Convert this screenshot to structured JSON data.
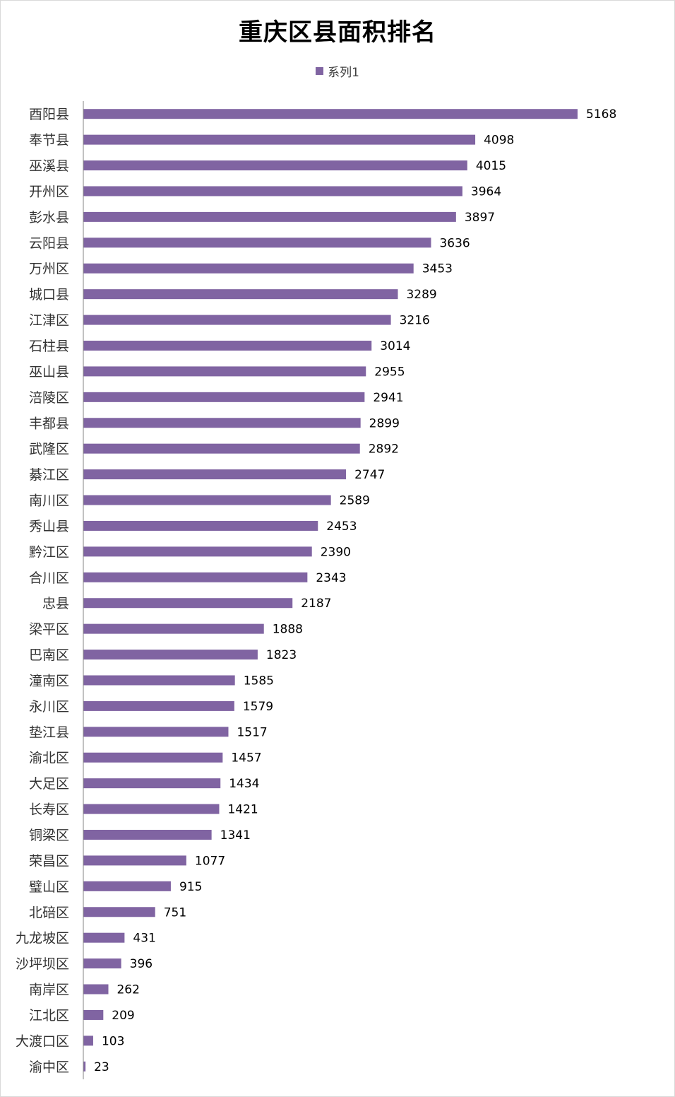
{
  "chart_data": {
    "type": "bar",
    "orientation": "horizontal",
    "title": "重庆区县面积排名",
    "legend_position": "top",
    "grid": false,
    "color": "#8064A2",
    "xlim": [
      0,
      5500
    ],
    "series": [
      {
        "name": "系列1",
        "values": [
          5168,
          4098,
          4015,
          3964,
          3897,
          3636,
          3453,
          3289,
          3216,
          3014,
          2955,
          2941,
          2899,
          2892,
          2747,
          2589,
          2453,
          2390,
          2343,
          2187,
          1888,
          1823,
          1585,
          1579,
          1517,
          1457,
          1434,
          1421,
          1341,
          1077,
          915,
          751,
          431,
          396,
          262,
          209,
          103,
          23
        ]
      }
    ],
    "categories": [
      "酉阳县",
      "奉节县",
      "巫溪县",
      "开州区",
      "彭水县",
      "云阳县",
      "万州区",
      "城口县",
      "江津区",
      "石柱县",
      "巫山县",
      "涪陵区",
      "丰都县",
      "武隆区",
      "綦江区",
      "南川区",
      "秀山县",
      "黔江区",
      "合川区",
      "忠县",
      "梁平区",
      "巴南区",
      "潼南区",
      "永川区",
      "垫江县",
      "渝北区",
      "大足区",
      "长寿区",
      "铜梁区",
      "荣昌区",
      "璧山区",
      "北碚区",
      "九龙坡区",
      "沙坪坝区",
      "南岸区",
      "江北区",
      "大渡口区",
      "渝中区"
    ]
  }
}
